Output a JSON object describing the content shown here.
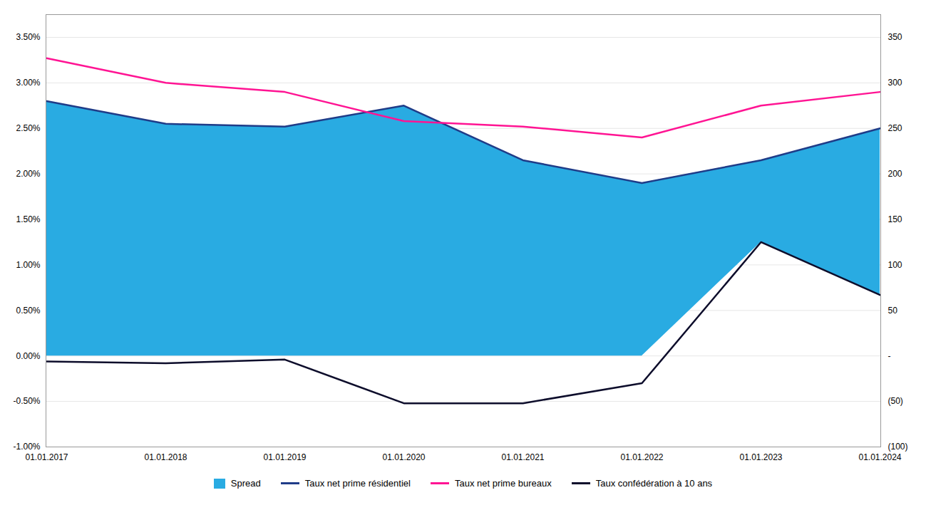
{
  "chart_data": {
    "type": "line",
    "categories": [
      "01.01.2017",
      "01.01.2018",
      "01.01.2019",
      "01.01.2020",
      "01.01.2021",
      "01.01.2022",
      "01.01.2023",
      "01.01.2024"
    ],
    "series": [
      {
        "name": "Spread",
        "type": "area",
        "color": "#29ABE2",
        "values": [
          2.8,
          2.55,
          2.52,
          2.75,
          2.15,
          1.9,
          2.15,
          2.5
        ],
        "base": [
          0.0,
          0.0,
          0.0,
          0.0,
          0.0,
          0.0,
          1.25,
          0.67
        ]
      },
      {
        "name": "Taux net prime résidentiel",
        "type": "line",
        "color": "#1F3C88",
        "values": [
          2.8,
          2.55,
          2.52,
          2.75,
          2.15,
          1.9,
          2.15,
          2.5
        ]
      },
      {
        "name": "Taux net prime bureaux",
        "type": "line",
        "color": "#FF1493",
        "values": [
          3.27,
          3.0,
          2.9,
          2.58,
          2.52,
          2.4,
          2.75,
          2.9
        ]
      },
      {
        "name": "Taux confédération à 10 ans",
        "type": "line",
        "color": "#0D0D2B",
        "values": [
          -0.06,
          -0.08,
          -0.04,
          -0.52,
          -0.52,
          -0.3,
          1.25,
          0.67
        ]
      }
    ],
    "ylim": [
      -1.0,
      3.75
    ],
    "yticks": [
      {
        "value": -1.0,
        "label": "-1.00%"
      },
      {
        "value": -0.5,
        "label": "-0.50%"
      },
      {
        "value": 0.0,
        "label": "0.00%"
      },
      {
        "value": 0.5,
        "label": "0.50%"
      },
      {
        "value": 1.0,
        "label": "1.00%"
      },
      {
        "value": 1.5,
        "label": "1.50%"
      },
      {
        "value": 2.0,
        "label": "2.00%"
      },
      {
        "value": 2.5,
        "label": "2.50%"
      },
      {
        "value": 3.0,
        "label": "3.00%"
      },
      {
        "value": 3.5,
        "label": "3.50%"
      }
    ],
    "y2lim": [
      -100,
      375
    ],
    "y2ticks": [
      {
        "value": -100,
        "label": "(100)"
      },
      {
        "value": -50,
        "label": "(50)"
      },
      {
        "value": 0,
        "label": "-"
      },
      50,
      100,
      150,
      200,
      250,
      300,
      350
    ],
    "grid": true,
    "legend": "bottom"
  }
}
